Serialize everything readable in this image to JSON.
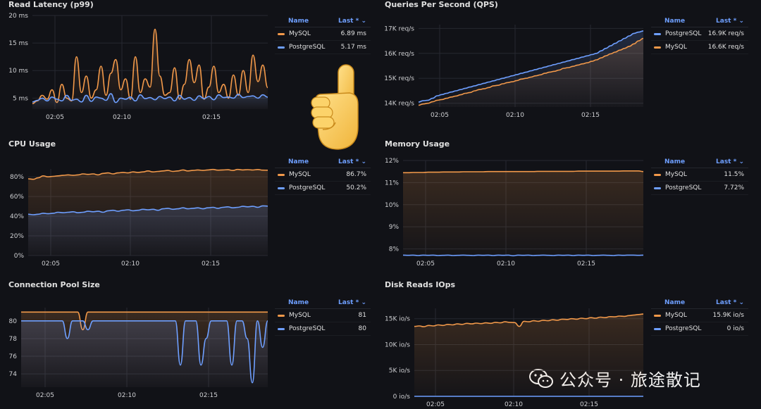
{
  "colors": {
    "mysql": "#f2994a",
    "postgres": "#6e9fff",
    "grid": "#262830",
    "axis": "#cfd0d3",
    "bg": "#111217"
  },
  "legend_header": {
    "name": "Name",
    "last": "Last *"
  },
  "hand_icon": "pointing-up-hand-emoji",
  "watermark": {
    "text": "公众号 · 旅途散记",
    "icon": "wechat-icon"
  },
  "panels": [
    {
      "title": "Read Latency (p99)",
      "chart_data": {
        "type": "line",
        "y_ticks": [
          "20 ms",
          "15 ms",
          "10 ms",
          "5 ms"
        ],
        "x_ticks": [
          "02:05",
          "02:10",
          "02:15"
        ],
        "ylim": [
          3,
          20
        ],
        "series": [
          {
            "name": "MySQL",
            "last": "6.89 ms",
            "values": [
              4,
              4.5,
              5.5,
              4.8,
              6.5,
              4.2,
              7.5,
              5,
              4.5,
              12.5,
              6,
              9,
              5,
              6.5,
              10.8,
              5.5,
              9.5,
              12,
              6.5,
              8.5,
              4.8,
              12.5,
              6,
              8.5,
              7,
              17.5,
              9,
              5.5,
              6,
              10.5,
              4.8,
              7.5,
              12,
              7.8,
              11,
              4.8,
              7,
              10.8,
              6,
              7.5,
              5,
              9.2,
              5.5,
              10,
              6,
              12.8,
              8,
              11,
              6.9
            ]
          },
          {
            "name": "PostgreSQL",
            "last": "5.17 ms",
            "values": [
              4.3,
              4.6,
              5,
              4.5,
              5.2,
              4.8,
              4.5,
              5.5,
              4.6,
              4.8,
              4.3,
              5.5,
              4.4,
              5.2,
              5,
              4.6,
              5.8,
              4.2,
              5,
              4.8,
              5.2,
              4.5,
              5.6,
              4.9,
              5.1,
              4.7,
              5.3,
              4.9,
              5.2,
              4.5,
              5.5,
              4.8,
              5.1,
              4.6,
              5.4,
              4.9,
              5.3,
              4.7,
              5.6,
              5.1,
              5.2,
              5,
              5.7,
              5.1,
              5.3,
              5.4,
              5,
              5.6,
              5.17
            ]
          }
        ]
      }
    },
    {
      "title": "Queries Per Second (QPS)",
      "chart_data": {
        "type": "line",
        "y_ticks": [
          "17K req/s",
          "16K req/s",
          "15K req/s",
          "14K req/s"
        ],
        "x_ticks": [
          "02:05",
          "02:10",
          "02:15"
        ],
        "ylim": [
          13850,
          17150
        ],
        "series": [
          {
            "name": "PostgreSQL",
            "last": "16.9K req/s",
            "values": [
              14050,
              14100,
              14120,
              14200,
              14300,
              14350,
              14400,
              14450,
              14500,
              14550,
              14600,
              14650,
              14700,
              14750,
              14800,
              14850,
              14900,
              14950,
              15000,
              15050,
              15100,
              15150,
              15200,
              15250,
              15300,
              15350,
              15400,
              15450,
              15500,
              15550,
              15600,
              15650,
              15700,
              15750,
              15800,
              15850,
              15900,
              15950,
              16000,
              16100,
              16200,
              16300,
              16400,
              16500,
              16600,
              16700,
              16800,
              16850,
              16900
            ]
          },
          {
            "name": "MySQL",
            "last": "16.6K req/s",
            "values": [
              13920,
              13970,
              14000,
              14060,
              14120,
              14150,
              14200,
              14250,
              14290,
              14340,
              14400,
              14430,
              14500,
              14550,
              14580,
              14630,
              14700,
              14720,
              14780,
              14830,
              14860,
              14910,
              14970,
              15000,
              15050,
              15100,
              15140,
              15200,
              15250,
              15280,
              15330,
              15400,
              15430,
              15480,
              15530,
              15580,
              15620,
              15680,
              15740,
              15820,
              15900,
              15980,
              16050,
              16130,
              16200,
              16280,
              16380,
              16500,
              16600
            ]
          }
        ]
      }
    },
    {
      "title": "CPU Usage",
      "chart_data": {
        "type": "line",
        "y_ticks": [
          "80%",
          "60%",
          "40%",
          "20%",
          "0%"
        ],
        "x_ticks": [
          "02:05",
          "02:10",
          "02:15"
        ],
        "ylim": [
          0,
          88
        ],
        "series": [
          {
            "name": "MySQL",
            "last": "86.7%",
            "values": [
              78,
              77.5,
              79,
              81,
              80,
              80.5,
              81,
              81.5,
              82,
              81.5,
              82,
              83,
              82.5,
              83,
              82,
              83.5,
              84,
              83,
              84,
              84.5,
              84,
              85,
              84.5,
              85,
              86,
              85,
              85.5,
              86,
              86.5,
              85.5,
              86,
              87,
              86,
              86.5,
              87,
              86.5,
              87,
              87.5,
              86.8,
              87,
              87.2,
              86.5,
              87.5,
              87,
              87.3,
              86.9,
              87.4,
              86.8,
              86.7
            ]
          },
          {
            "name": "PostgreSQL",
            "last": "50.2%",
            "values": [
              42,
              41.5,
              42,
              43,
              42.5,
              43,
              44,
              43.5,
              44,
              44.5,
              43.5,
              44,
              45,
              44.5,
              45,
              44,
              45.5,
              46,
              45,
              46,
              46.5,
              45.5,
              46,
              47,
              46.5,
              47,
              46,
              47.5,
              48,
              47,
              47.5,
              48.5,
              47.5,
              48,
              48.5,
              47.5,
              48.5,
              49,
              48,
              49,
              49.5,
              48.5,
              49,
              50,
              49.5,
              50,
              49,
              50.5,
              50.2
            ]
          }
        ]
      }
    },
    {
      "title": "Memory Usage",
      "chart_data": {
        "type": "line",
        "y_ticks": [
          "12%",
          "11%",
          "10%",
          "9%",
          "8%"
        ],
        "x_ticks": [
          "02:05",
          "02:10",
          "02:15"
        ],
        "ylim": [
          7.7,
          12
        ],
        "series": [
          {
            "name": "MySQL",
            "last": "11.5%",
            "values": [
              11.45,
              11.45,
              11.46,
              11.46,
              11.46,
              11.47,
              11.47,
              11.47,
              11.48,
              11.48,
              11.48,
              11.48,
              11.49,
              11.49,
              11.49,
              11.49,
              11.49,
              11.5,
              11.5,
              11.5,
              11.5,
              11.5,
              11.5,
              11.5,
              11.5,
              11.5,
              11.5,
              11.51,
              11.51,
              11.51,
              11.51,
              11.51,
              11.51,
              11.51,
              11.51,
              11.52,
              11.52,
              11.52,
              11.52,
              11.52,
              11.52,
              11.52,
              11.52,
              11.52,
              11.53,
              11.53,
              11.53,
              11.53,
              11.5
            ]
          },
          {
            "name": "PostgreSQL",
            "last": "7.72%",
            "values": [
              7.72,
              7.71,
              7.72,
              7.7,
              7.72,
              7.71,
              7.72,
              7.7,
              7.71,
              7.72,
              7.7,
              7.71,
              7.72,
              7.71,
              7.7,
              7.72,
              7.71,
              7.72,
              7.7,
              7.72,
              7.71,
              7.72,
              7.69,
              7.72,
              7.71,
              7.72,
              7.7,
              7.71,
              7.72,
              7.71,
              7.7,
              7.72,
              7.71,
              7.72,
              7.7,
              7.72,
              7.71,
              7.72,
              7.7,
              7.71,
              7.72,
              7.71,
              7.7,
              7.72,
              7.71,
              7.72,
              7.72,
              7.71,
              7.72
            ]
          }
        ]
      }
    },
    {
      "title": "Connection Pool Size",
      "chart_data": {
        "type": "line",
        "y_ticks": [
          "80",
          "78",
          "76",
          "74"
        ],
        "x_ticks": [
          "02:05",
          "02:10",
          "02:15"
        ],
        "ylim": [
          72.5,
          81.5
        ],
        "series": [
          {
            "name": "MySQL",
            "last": "81",
            "values": [
              81,
              81,
              81,
              81,
              81,
              81,
              81,
              81,
              81,
              81,
              81,
              81,
              79,
              81,
              81,
              81,
              81,
              81,
              81,
              81,
              81,
              81,
              81,
              81,
              81,
              81,
              81,
              81,
              81,
              81,
              81,
              81,
              81,
              81,
              81,
              81,
              81,
              81,
              81,
              81,
              81,
              81,
              81,
              81,
              81,
              81,
              81,
              81,
              81
            ]
          },
          {
            "name": "PostgreSQL",
            "last": "80",
            "values": [
              80,
              80,
              80,
              80,
              80,
              80,
              80,
              80,
              80,
              78,
              80,
              80,
              80,
              79,
              80,
              80,
              80,
              80,
              80,
              80,
              80,
              80,
              80,
              80,
              80,
              80,
              80,
              80,
              80,
              80,
              80,
              75,
              80,
              80,
              80,
              75,
              78,
              80,
              80,
              80,
              80,
              75,
              80,
              80,
              78,
              73,
              80,
              77,
              80
            ]
          }
        ]
      }
    },
    {
      "title": "Disk Reads IOps",
      "chart_data": {
        "type": "line",
        "y_ticks": [
          "15K io/s",
          "10K io/s",
          "5K io/s",
          "0 io/s"
        ],
        "x_ticks": [
          "02:05",
          "02:10",
          "02:15"
        ],
        "ylim": [
          0,
          17000
        ],
        "series": [
          {
            "name": "MySQL",
            "last": "15.9K io/s",
            "values": [
              13500,
              13600,
              13450,
              13700,
              13600,
              13800,
              13700,
              13900,
              13800,
              14000,
              13900,
              14100,
              14000,
              14150,
              14050,
              14200,
              14100,
              14300,
              14200,
              14400,
              14300,
              14250,
              13500,
              14500,
              14400,
              14600,
              14500,
              14700,
              14600,
              14800,
              14700,
              14900,
              14850,
              15000,
              14900,
              15100,
              15000,
              15200,
              15100,
              15300,
              15200,
              15400,
              15350,
              15500,
              15450,
              15600,
              15700,
              15800,
              15900
            ]
          },
          {
            "name": "PostgreSQL",
            "last": "0 io/s",
            "values": [
              0,
              0,
              0,
              0,
              0,
              0,
              0,
              0,
              0,
              0,
              0,
              0,
              0,
              0,
              0,
              0,
              0,
              0,
              0,
              0,
              0,
              0,
              0,
              0,
              0,
              0,
              0,
              0,
              0,
              0,
              0,
              0,
              0,
              0,
              0,
              0,
              0,
              0,
              0,
              0,
              0,
              0,
              0,
              0,
              0,
              0,
              0,
              0,
              0
            ]
          }
        ]
      }
    }
  ]
}
